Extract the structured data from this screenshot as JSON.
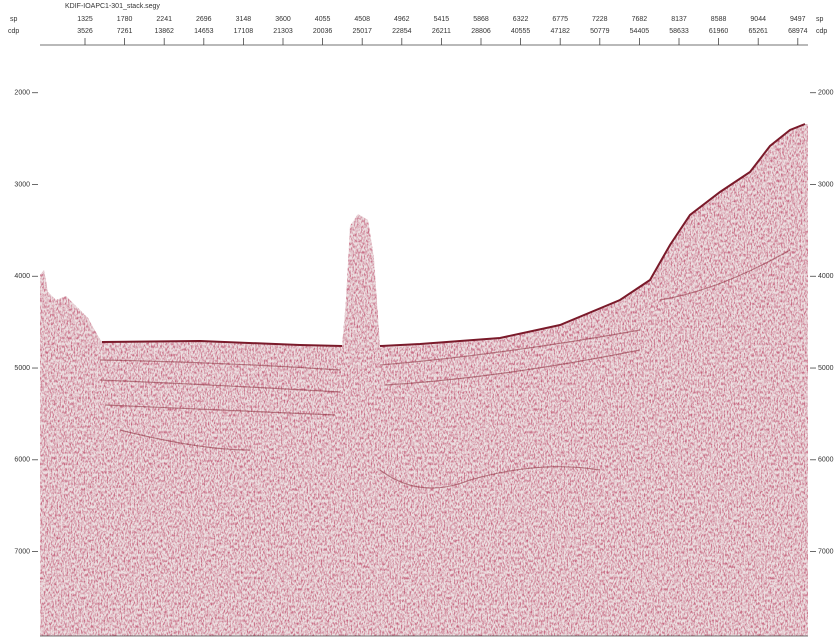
{
  "header": {
    "title": "KDIF-IOAPC1-301_stack.segy",
    "left_labels": [
      "sp",
      "cdp"
    ],
    "right_labels": [
      "sp",
      "cdp"
    ]
  },
  "columns": [
    {
      "sp": "1325",
      "cdp": "3526"
    },
    {
      "sp": "1780",
      "cdp": "7261"
    },
    {
      "sp": "2241",
      "cdp": "13862"
    },
    {
      "sp": "2696",
      "cdp": "14653"
    },
    {
      "sp": "3148",
      "cdp": "17108"
    },
    {
      "sp": "3600",
      "cdp": "21303"
    },
    {
      "sp": "4055",
      "cdp": "20036"
    },
    {
      "sp": "4508",
      "cdp": "25017"
    },
    {
      "sp": "4962",
      "cdp": "22854"
    },
    {
      "sp": "5415",
      "cdp": "26211"
    },
    {
      "sp": "5868",
      "cdp": "28806"
    },
    {
      "sp": "6322",
      "cdp": "40555"
    },
    {
      "sp": "6775",
      "cdp": "47182"
    },
    {
      "sp": "7228",
      "cdp": "50779"
    },
    {
      "sp": "7682",
      "cdp": "54405"
    },
    {
      "sp": "8137",
      "cdp": "58633"
    },
    {
      "sp": "8588",
      "cdp": "61960"
    },
    {
      "sp": "9044",
      "cdp": "65261"
    },
    {
      "sp": "9497",
      "cdp": "68974"
    }
  ],
  "depth_axis": {
    "ylim": [
      1480,
      7920
    ],
    "ticks": [
      2000,
      3000,
      4000,
      5000,
      6000,
      7000
    ]
  }
}
